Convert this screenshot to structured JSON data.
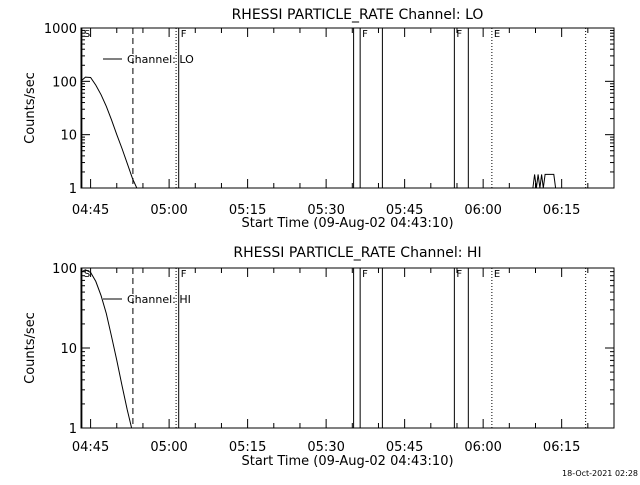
{
  "footer": {
    "timestamp": "18-Oct-2021 02:28"
  },
  "chart_data": [
    {
      "type": "line",
      "title": "RHESSI PARTICLE_RATE Channel: LO",
      "xlabel": "Start Time (09-Aug-02 04:43:10)",
      "ylabel": "Counts/sec",
      "y_scale": "log",
      "ylim": [
        1,
        1000
      ],
      "xlim": [
        "04:43:10",
        "06:25:00"
      ],
      "x_ticks": [
        "04:45",
        "05:00",
        "05:15",
        "05:30",
        "05:45",
        "06:00",
        "06:15"
      ],
      "y_ticks": [
        "1",
        "10",
        "100",
        "1000"
      ],
      "legend": {
        "entries": [
          "Channel: LO"
        ],
        "placement": "top-left"
      },
      "grid": false,
      "series": [
        {
          "name": "Channel: LO",
          "points": [
            [
              "04:43:20",
              105
            ],
            [
              "04:44:00",
              120
            ],
            [
              "04:45:00",
              118
            ],
            [
              "04:46:00",
              85
            ],
            [
              "04:47:00",
              56
            ],
            [
              "04:48:00",
              34
            ],
            [
              "04:49:00",
              19
            ],
            [
              "04:50:00",
              10
            ],
            [
              "04:51:00",
              5.5
            ],
            [
              "04:52:00",
              2.9
            ],
            [
              "04:53:00",
              1.5
            ],
            [
              "04:53:50",
              1.0
            ]
          ]
        },
        {
          "name": "",
          "points": [
            [
              "06:09:30",
              1.0
            ],
            [
              "06:09:50",
              1.8
            ],
            [
              "06:10:10",
              1.0
            ],
            [
              "06:10:30",
              1.8
            ],
            [
              "06:10:50",
              1.0
            ],
            [
              "06:11:10",
              1.8
            ],
            [
              "06:11:30",
              1.0
            ],
            [
              "06:11:50",
              1.8
            ],
            [
              "06:13:30",
              1.8
            ],
            [
              "06:13:50",
              1.0
            ]
          ]
        }
      ],
      "markers": [
        {
          "time": "04:43:20",
          "label": "S",
          "style": "solid"
        },
        {
          "time": "04:53:05",
          "label": "",
          "style": "dashed"
        },
        {
          "time": "05:01:20",
          "label": "",
          "style": "dotted"
        },
        {
          "time": "05:01:50",
          "label": "F",
          "style": "solid"
        },
        {
          "time": "05:35:15",
          "label": "",
          "style": "solid"
        },
        {
          "time": "05:36:30",
          "label": "F",
          "style": "solid"
        },
        {
          "time": "05:40:45",
          "label": "",
          "style": "solid"
        },
        {
          "time": "05:54:30",
          "label": "F",
          "style": "solid"
        },
        {
          "time": "05:57:10",
          "label": "",
          "style": "solid"
        },
        {
          "time": "06:01:40",
          "label": "E",
          "style": "dotted"
        },
        {
          "time": "06:19:35",
          "label": "",
          "style": "dotted"
        }
      ]
    },
    {
      "type": "line",
      "title": "RHESSI PARTICLE_RATE Channel: HI",
      "xlabel": "Start Time (09-Aug-02 04:43:10)",
      "ylabel": "Counts/sec",
      "y_scale": "log",
      "ylim": [
        1,
        100
      ],
      "xlim": [
        "04:43:10",
        "06:25:00"
      ],
      "x_ticks": [
        "04:45",
        "05:00",
        "05:15",
        "05:30",
        "05:45",
        "06:00",
        "06:15"
      ],
      "y_ticks": [
        "1",
        "10",
        "100"
      ],
      "legend": {
        "entries": [
          "Channel: HI"
        ],
        "placement": "top-left"
      },
      "grid": false,
      "series": [
        {
          "name": "Channel: HI",
          "points": [
            [
              "04:43:20",
              90
            ],
            [
              "04:44:00",
              95
            ],
            [
              "04:45:00",
              88
            ],
            [
              "04:46:00",
              68
            ],
            [
              "04:47:00",
              45
            ],
            [
              "04:48:00",
              27
            ],
            [
              "04:49:00",
              14
            ],
            [
              "04:50:00",
              7
            ],
            [
              "04:51:00",
              3.4
            ],
            [
              "04:52:00",
              1.7
            ],
            [
              "04:52:50",
              1.0
            ]
          ]
        }
      ],
      "markers": [
        {
          "time": "04:43:20",
          "label": "S",
          "style": "solid"
        },
        {
          "time": "04:53:05",
          "label": "",
          "style": "dashed"
        },
        {
          "time": "05:01:20",
          "label": "",
          "style": "dotted"
        },
        {
          "time": "05:01:50",
          "label": "F",
          "style": "solid"
        },
        {
          "time": "05:35:15",
          "label": "",
          "style": "solid"
        },
        {
          "time": "05:36:30",
          "label": "F",
          "style": "solid"
        },
        {
          "time": "05:40:45",
          "label": "",
          "style": "solid"
        },
        {
          "time": "05:54:30",
          "label": "F",
          "style": "solid"
        },
        {
          "time": "05:57:10",
          "label": "",
          "style": "solid"
        },
        {
          "time": "06:01:40",
          "label": "E",
          "style": "dotted"
        },
        {
          "time": "06:19:35",
          "label": "",
          "style": "dotted"
        }
      ]
    }
  ]
}
